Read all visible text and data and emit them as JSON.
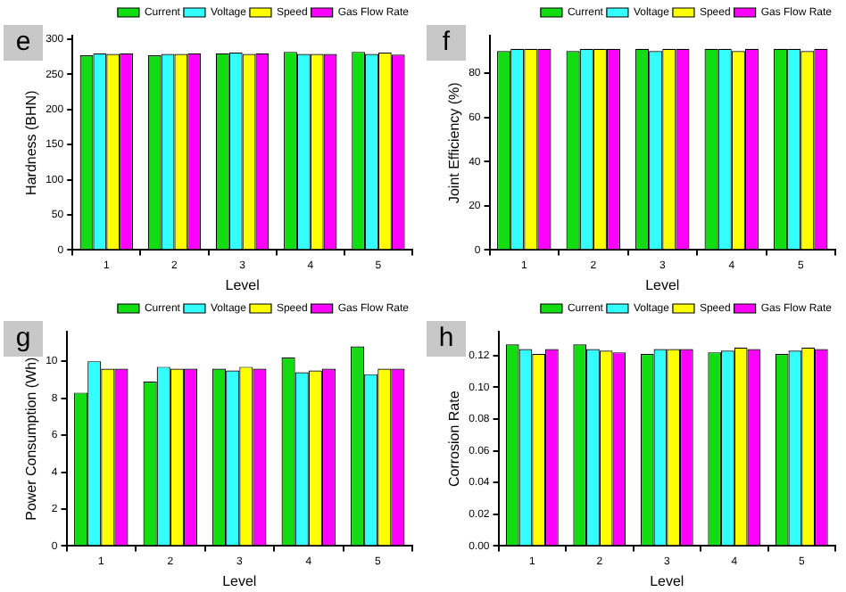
{
  "chart_data": [
    {
      "type": "bar",
      "title": "e",
      "xlabel": "Level",
      "ylabel": "Hardness (BHN)",
      "categories": [
        "1",
        "2",
        "3",
        "4",
        "5"
      ],
      "ylim": [
        0,
        305
      ],
      "yticks": [
        0,
        50,
        100,
        150,
        200,
        250,
        300
      ],
      "grid": false,
      "legend": "top right",
      "series": [
        {
          "name": "Current",
          "color": "#11dd11",
          "values": [
            277,
            277,
            280,
            282,
            282
          ]
        },
        {
          "name": "Voltage",
          "color": "#33ffff",
          "values": [
            280,
            279,
            281,
            279,
            279
          ]
        },
        {
          "name": "Speed",
          "color": "#ffff00",
          "values": [
            279,
            279,
            279,
            279,
            281
          ]
        },
        {
          "name": "Gas Flow Rate",
          "color": "#ff00ff",
          "values": [
            280,
            280,
            280,
            279,
            278
          ]
        }
      ]
    },
    {
      "type": "bar",
      "title": "f",
      "xlabel": "Level",
      "ylabel": "Joint Efficiency (%)",
      "categories": [
        "1",
        "2",
        "3",
        "4",
        "5"
      ],
      "ylim": [
        0,
        97
      ],
      "yticks": [
        0,
        20,
        40,
        60,
        80
      ],
      "grid": false,
      "legend": "top right",
      "series": [
        {
          "name": "Current",
          "color": "#11dd11",
          "values": [
            90,
            90,
            91,
            91,
            91
          ]
        },
        {
          "name": "Voltage",
          "color": "#33ffff",
          "values": [
            91,
            91,
            90,
            91,
            91
          ]
        },
        {
          "name": "Speed",
          "color": "#ffff00",
          "values": [
            91,
            91,
            91,
            90,
            90
          ]
        },
        {
          "name": "Gas Flow Rate",
          "color": "#ff00ff",
          "values": [
            91,
            91,
            91,
            91,
            91
          ]
        }
      ]
    },
    {
      "type": "bar",
      "title": "g",
      "xlabel": "Level",
      "ylabel": "Power Consumption (Wh)",
      "categories": [
        "1",
        "2",
        "3",
        "4",
        "5"
      ],
      "ylim": [
        0,
        11.6
      ],
      "yticks": [
        0,
        2,
        4,
        6,
        8,
        10
      ],
      "grid": false,
      "legend": "top right",
      "series": [
        {
          "name": "Current",
          "color": "#11dd11",
          "values": [
            8.3,
            8.9,
            9.6,
            10.2,
            10.8
          ]
        },
        {
          "name": "Voltage",
          "color": "#33ffff",
          "values": [
            10.0,
            9.7,
            9.5,
            9.4,
            9.3
          ]
        },
        {
          "name": "Speed",
          "color": "#ffff00",
          "values": [
            9.6,
            9.6,
            9.7,
            9.5,
            9.6
          ]
        },
        {
          "name": "Gas Flow Rate",
          "color": "#ff00ff",
          "values": [
            9.6,
            9.6,
            9.6,
            9.6,
            9.6
          ]
        }
      ]
    },
    {
      "type": "bar",
      "title": "h",
      "xlabel": "Level",
      "ylabel": "Corrosion Rate",
      "categories": [
        "1",
        "2",
        "3",
        "4",
        "5"
      ],
      "ylim": [
        0,
        0.135
      ],
      "yticks": [
        {
          "value": 0,
          "label": "0.00"
        },
        {
          "value": 0.02,
          "label": "0.02"
        },
        {
          "value": 0.04,
          "label": "0.04"
        },
        {
          "value": 0.06,
          "label": "0.06"
        },
        {
          "value": 0.08,
          "label": "0.08"
        },
        {
          "value": 0.1,
          "label": "0.10"
        },
        {
          "value": 0.12,
          "label": "0.12"
        }
      ],
      "grid": false,
      "legend": "top right",
      "series": [
        {
          "name": "Current",
          "color": "#11dd11",
          "values": [
            0.127,
            0.127,
            0.121,
            0.122,
            0.121
          ]
        },
        {
          "name": "Voltage",
          "color": "#33ffff",
          "values": [
            0.124,
            0.124,
            0.124,
            0.123,
            0.123
          ]
        },
        {
          "name": "Speed",
          "color": "#ffff00",
          "values": [
            0.121,
            0.123,
            0.124,
            0.125,
            0.125
          ]
        },
        {
          "name": "Gas Flow Rate",
          "color": "#ff00ff",
          "values": [
            0.124,
            0.122,
            0.124,
            0.124,
            0.124
          ]
        }
      ]
    }
  ]
}
